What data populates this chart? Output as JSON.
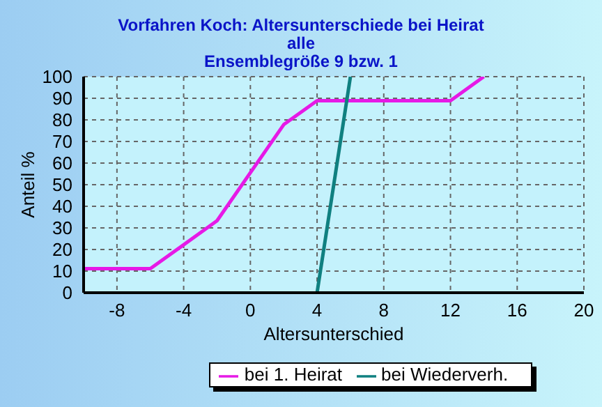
{
  "chart_data": {
    "type": "line",
    "title": "Vorfahren Koch: Altersunterschiede bei Heirat\nalle\nEnsemblegröße 9 bzw. 1",
    "xlabel": "Altersunterschied",
    "ylabel": "Anteil %",
    "xlim": [
      -10,
      20
    ],
    "xticks": [
      -8,
      -4,
      0,
      4,
      8,
      12,
      16,
      20
    ],
    "ylim": [
      0,
      100
    ],
    "yticks": [
      0,
      10,
      20,
      30,
      40,
      50,
      60,
      70,
      80,
      90,
      100
    ],
    "series": [
      {
        "name": "bei 1. Heirat",
        "color": "#e619e6",
        "x": [
          -10,
          -6,
          -2,
          2,
          4,
          12,
          14
        ],
        "values": [
          11.1,
          11.1,
          33.3,
          77.8,
          88.9,
          88.9,
          100
        ]
      },
      {
        "name": "bei Wiederverh.",
        "color": "#0f8080",
        "x": [
          4,
          6
        ],
        "values": [
          0,
          100
        ]
      }
    ],
    "grid": true,
    "legend": "bottom",
    "marker": "none",
    "line_style": "solid"
  }
}
